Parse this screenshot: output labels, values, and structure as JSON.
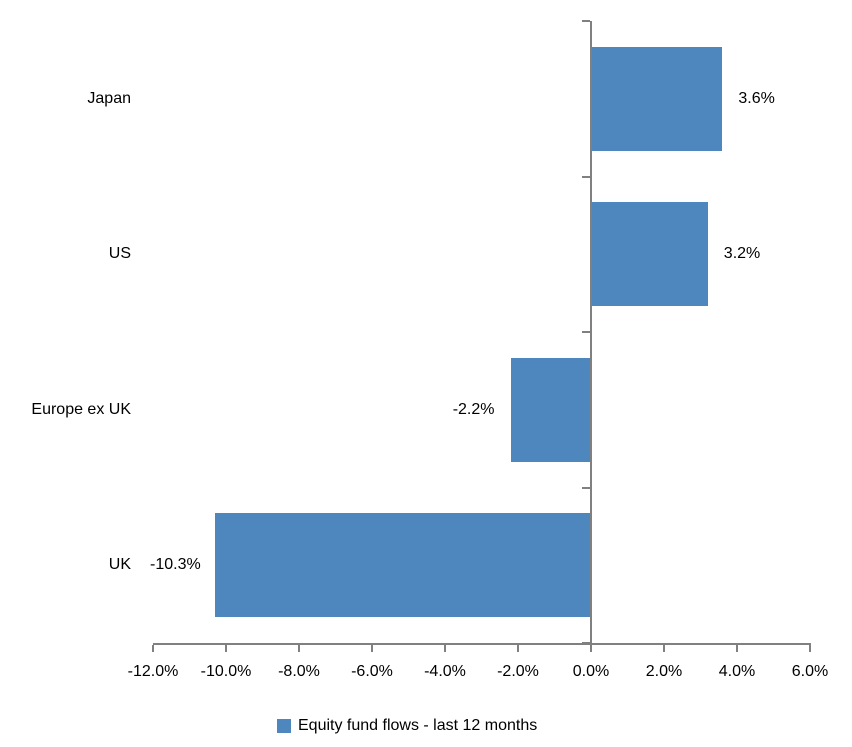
{
  "chart_data": {
    "type": "bar",
    "orientation": "horizontal",
    "title": "",
    "categories": [
      "Japan",
      "US",
      "Europe ex UK",
      "UK"
    ],
    "series": [
      {
        "name": "Equity fund flows - last 12 months",
        "values": [
          3.6,
          3.2,
          -2.2,
          -10.3
        ]
      }
    ],
    "value_labels": [
      "3.6%",
      "3.2%",
      "-2.2%",
      "-10.3%"
    ],
    "xlim": [
      -12,
      6
    ],
    "x_tick_values": [
      -12,
      -10,
      -8,
      -6,
      -4,
      -2,
      0,
      2,
      4,
      6
    ],
    "x_tick_labels": [
      "-12.0%",
      "-10.0%",
      "-8.0%",
      "-6.0%",
      "-4.0%",
      "-2.0%",
      "0.0%",
      "2.0%",
      "4.0%",
      "6.0%"
    ],
    "grid": false,
    "legend": {
      "position": "bottom",
      "label": "Equity fund flows - last 12 months"
    },
    "colors": {
      "bar": "#4E86BE",
      "axis": "#808080",
      "text": "#000000"
    }
  }
}
